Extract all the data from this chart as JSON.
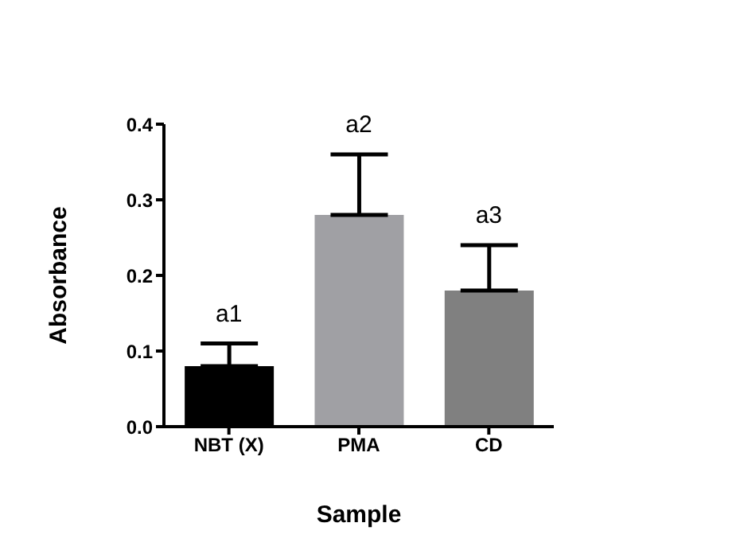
{
  "chart_data": {
    "type": "bar",
    "xlabel": "Sample",
    "ylabel": "Absorbance",
    "categories": [
      "NBT (X)",
      "PMA",
      "CD"
    ],
    "values": [
      0.08,
      0.28,
      0.18
    ],
    "colors": [
      "#000000",
      "#a0a0a4",
      "#808080"
    ],
    "errors": [
      [
        0.08,
        0.11
      ],
      [
        0.28,
        0.36
      ],
      [
        0.18,
        0.24
      ]
    ],
    "ylim": [
      0,
      0.4
    ],
    "yticks": [
      {
        "value": 0,
        "label": "0.0"
      },
      0.1,
      0.2,
      0.3,
      0.4
    ],
    "grid": false,
    "legend": false,
    "annotations": [
      {
        "text": "a1",
        "x": "NBT (X)",
        "y": 0.11
      },
      {
        "text": "a2",
        "x": "PMA",
        "y": 0.36
      },
      {
        "text": "a3",
        "x": "CD",
        "y": 0.24
      }
    ]
  }
}
